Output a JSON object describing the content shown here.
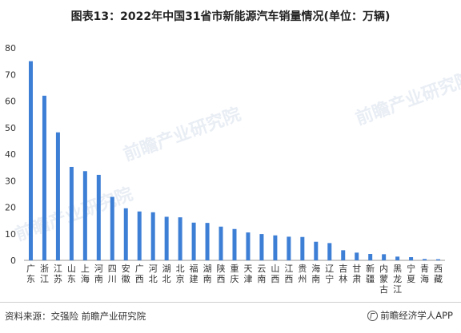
{
  "title": "图表13：2022年中国31省市新能源汽车销量情况(单位：万辆)",
  "source": "资料来源：交强险 前瞻产业研究院",
  "brand": "前瞻经济学人APP",
  "watermark": "前瞻产业研究院",
  "colors": {
    "bar": "#3e7fd6",
    "axis": "#999999",
    "text": "#333333"
  },
  "chart_data": {
    "type": "bar",
    "title": "图表13：2022年中国31省市新能源汽车销量情况(单位：万辆)",
    "xlabel": "",
    "ylabel": "",
    "ylim": [
      0,
      80
    ],
    "yticks": [
      0,
      10,
      20,
      30,
      40,
      50,
      60,
      70,
      80
    ],
    "grid": false,
    "legend": "none",
    "categories": [
      "广东",
      "浙江",
      "江苏",
      "山东",
      "上海",
      "河南",
      "四川",
      "安徽",
      "广西",
      "河北",
      "湖北",
      "北京",
      "福建",
      "湖南",
      "陕西",
      "重庆",
      "天津",
      "云南",
      "山西",
      "江西",
      "贵州",
      "海南",
      "辽宁",
      "吉林",
      "甘肃",
      "新疆",
      "内蒙古",
      "黑龙江",
      "宁夏",
      "青海",
      "西藏"
    ],
    "values": [
      75.0,
      62.0,
      48.2,
      35.2,
      33.6,
      32.2,
      23.9,
      19.6,
      18.4,
      18.1,
      16.4,
      16.2,
      14.2,
      14.1,
      12.7,
      11.8,
      10.5,
      9.9,
      9.4,
      8.9,
      8.8,
      7.0,
      6.5,
      3.8,
      2.9,
      2.4,
      2.3,
      1.4,
      1.2,
      0.5,
      0.4
    ]
  }
}
